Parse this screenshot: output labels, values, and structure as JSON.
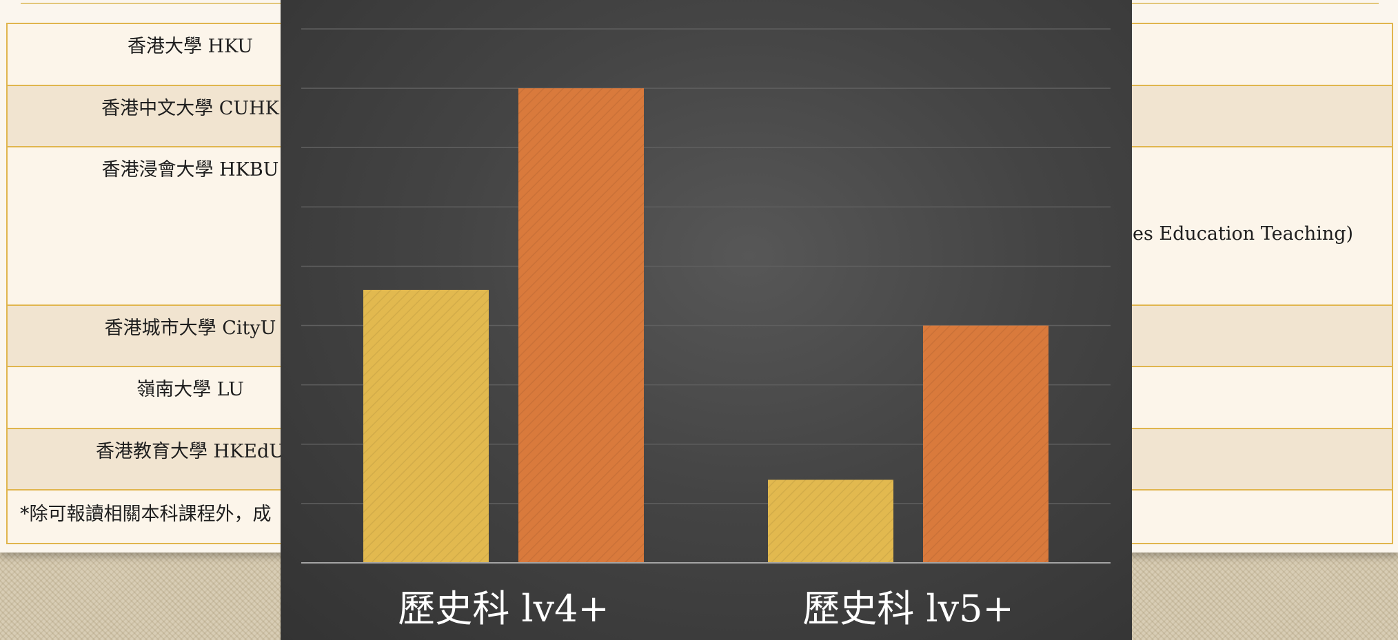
{
  "table": {
    "rows": [
      {
        "left": "香港大學 HKU",
        "right": ""
      },
      {
        "left": "香港中文大學 CUHK",
        "right": ""
      },
      {
        "left": "香港浸會大學 HKBU",
        "right": "es Education Teaching)"
      },
      {
        "left": "香港城市大學 CityU",
        "right": ""
      },
      {
        "left": "嶺南大學 LU",
        "right": ""
      },
      {
        "left": "香港教育大學 HKEdU",
        "right": ""
      },
      {
        "left": "*除可報讀相關本科課程外，成",
        "right": ""
      }
    ]
  },
  "chart_data": {
    "type": "bar",
    "categories": [
      "歷史科 lv4+",
      "歷史科 lv5+"
    ],
    "series": [
      {
        "values": [
          46,
          14
        ],
        "color": "#e2b94f"
      },
      {
        "values": [
          80,
          40
        ],
        "color": "#d97a3c"
      }
    ],
    "ylim": [
      0,
      90
    ],
    "grid": true,
    "gridlines": [
      0,
      10,
      20,
      30,
      40,
      50,
      60,
      70,
      80,
      90
    ],
    "legend": "none"
  }
}
